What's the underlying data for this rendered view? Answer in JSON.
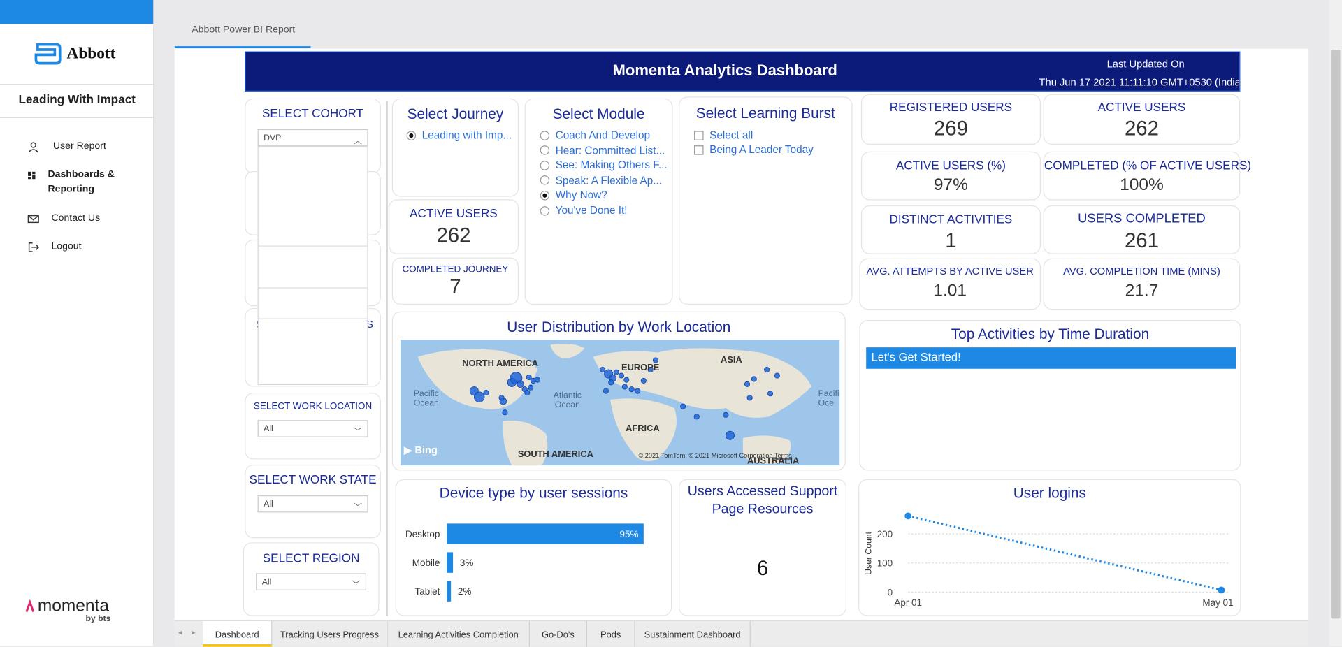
{
  "sidebar": {
    "brand": "Abbott",
    "app_title": "Leading With Impact",
    "nav": [
      {
        "label": "User Report",
        "icon": "user-icon"
      },
      {
        "label": "Dashboards & Reporting",
        "icon": "dashboard-icon"
      },
      {
        "label": "Contact Us",
        "icon": "mail-icon"
      },
      {
        "label": "Logout",
        "icon": "logout-icon"
      }
    ],
    "footer_brand": "momenta",
    "footer_sub": "by bts"
  },
  "report_tab": "Abbott Power BI Report",
  "header": {
    "title": "Momenta Analytics Dashboard",
    "updated_label": "Last Updated On",
    "updated_value": "Thu Jun 17 2021 11:11:10 GMT+0530 (India"
  },
  "filters": {
    "cohort": {
      "title": "SELECT COHORT",
      "value": "DVP"
    },
    "partial_label": "S",
    "partial_label_right": "S",
    "work_location": {
      "title": "SELECT WORK LOCATION",
      "value": "All"
    },
    "work_state": {
      "title": "SELECT WORK STATE",
      "value": "All"
    },
    "region": {
      "title": "SELECT REGION",
      "value": "All"
    }
  },
  "journey": {
    "title": "Select Journey",
    "options": [
      {
        "label": "Leading with Imp...",
        "selected": true
      }
    ]
  },
  "module": {
    "title": "Select Module",
    "options": [
      {
        "label": "Coach And Develop",
        "selected": false
      },
      {
        "label": "Hear: Committed List...",
        "selected": false
      },
      {
        "label": "See: Making Others F...",
        "selected": false
      },
      {
        "label": "Speak: A Flexible Ap...",
        "selected": false
      },
      {
        "label": "Why Now?",
        "selected": true
      },
      {
        "label": "You've Done It!",
        "selected": false
      }
    ]
  },
  "burst": {
    "title": "Select Learning Burst",
    "options": [
      "Select all",
      "Being A Leader Today"
    ]
  },
  "kpis_left": {
    "active_users": {
      "label": "ACTIVE USERS",
      "value": "262"
    },
    "completed_journey": {
      "label": "COMPLETED JOURNEY",
      "value": "7"
    }
  },
  "kpis": {
    "registered": {
      "label": "REGISTERED USERS",
      "value": "269"
    },
    "active": {
      "label": "ACTIVE USERS",
      "value": "262"
    },
    "active_pct": {
      "label": "ACTIVE USERS (%)",
      "value": "97%"
    },
    "completed_pct": {
      "label": "COMPLETED  (% OF ACTIVE USERS)",
      "value": "100%"
    },
    "distinct": {
      "label": "DISTINCT ACTIVITIES",
      "value": "1"
    },
    "users_completed": {
      "label": "USERS COMPLETED",
      "value": "261"
    },
    "avg_attempts": {
      "label": "AVG. ATTEMPTS BY ACTIVE USER",
      "value": "1.01"
    },
    "avg_time": {
      "label": "AVG. COMPLETION TIME (MINS)",
      "value": "21.7"
    }
  },
  "map": {
    "title": "User Distribution by Work Location",
    "labels": {
      "north_america": "NORTH AMERICA",
      "europe": "EUROPE",
      "asia": "ASIA",
      "africa": "AFRICA",
      "south_america": "SOUTH AMERICA",
      "australia": "AUSTRALIA",
      "pacific_left": "Pacific Ocean",
      "atlantic": "Atlantic Ocean",
      "pacific_right": "Pacific Oce"
    },
    "bing": "Bing",
    "copyright": "© 2021 TomTom, © 2021 Microsoft Corporation",
    "terms": "Terms",
    "land_color": "#e8e4d8",
    "water_color": "#9ec6ea",
    "dot_color": "#1e64d8"
  },
  "top_activities": {
    "title": "Top Activities by Time Duration",
    "items": [
      "Let's Get Started!"
    ],
    "bar_color": "#1e88e5"
  },
  "device": {
    "chart_data": {
      "type": "bar",
      "orientation": "horizontal",
      "title": "Device type by user sessions",
      "categories": [
        "Desktop",
        "Mobile",
        "Tablet"
      ],
      "values": [
        95,
        3,
        2
      ],
      "value_labels": [
        "95%",
        "3%",
        "2%"
      ],
      "color": "#1e88e5"
    }
  },
  "support": {
    "title_line1": "Users Accessed Support",
    "title_line2": "Page Resources",
    "value": "6"
  },
  "logins": {
    "chart_data": {
      "type": "line",
      "title": "User logins",
      "ylabel": "User Count",
      "x": [
        "Apr 01",
        "May 01"
      ],
      "values": [
        262,
        7
      ],
      "yticks": [
        "0",
        "100",
        "200"
      ],
      "ylim": [
        0,
        262
      ],
      "line_style": "dotted",
      "color": "#1e88e5"
    }
  },
  "bottom_tabs": [
    {
      "label": "Dashboard",
      "active": true
    },
    {
      "label": "Tracking Users Progress",
      "active": false
    },
    {
      "label": "Learning Activities Completion",
      "active": false
    },
    {
      "label": "Go-Do's",
      "active": false
    },
    {
      "label": "Pods",
      "active": false
    },
    {
      "label": "Sustainment Dashboard",
      "active": false
    }
  ]
}
